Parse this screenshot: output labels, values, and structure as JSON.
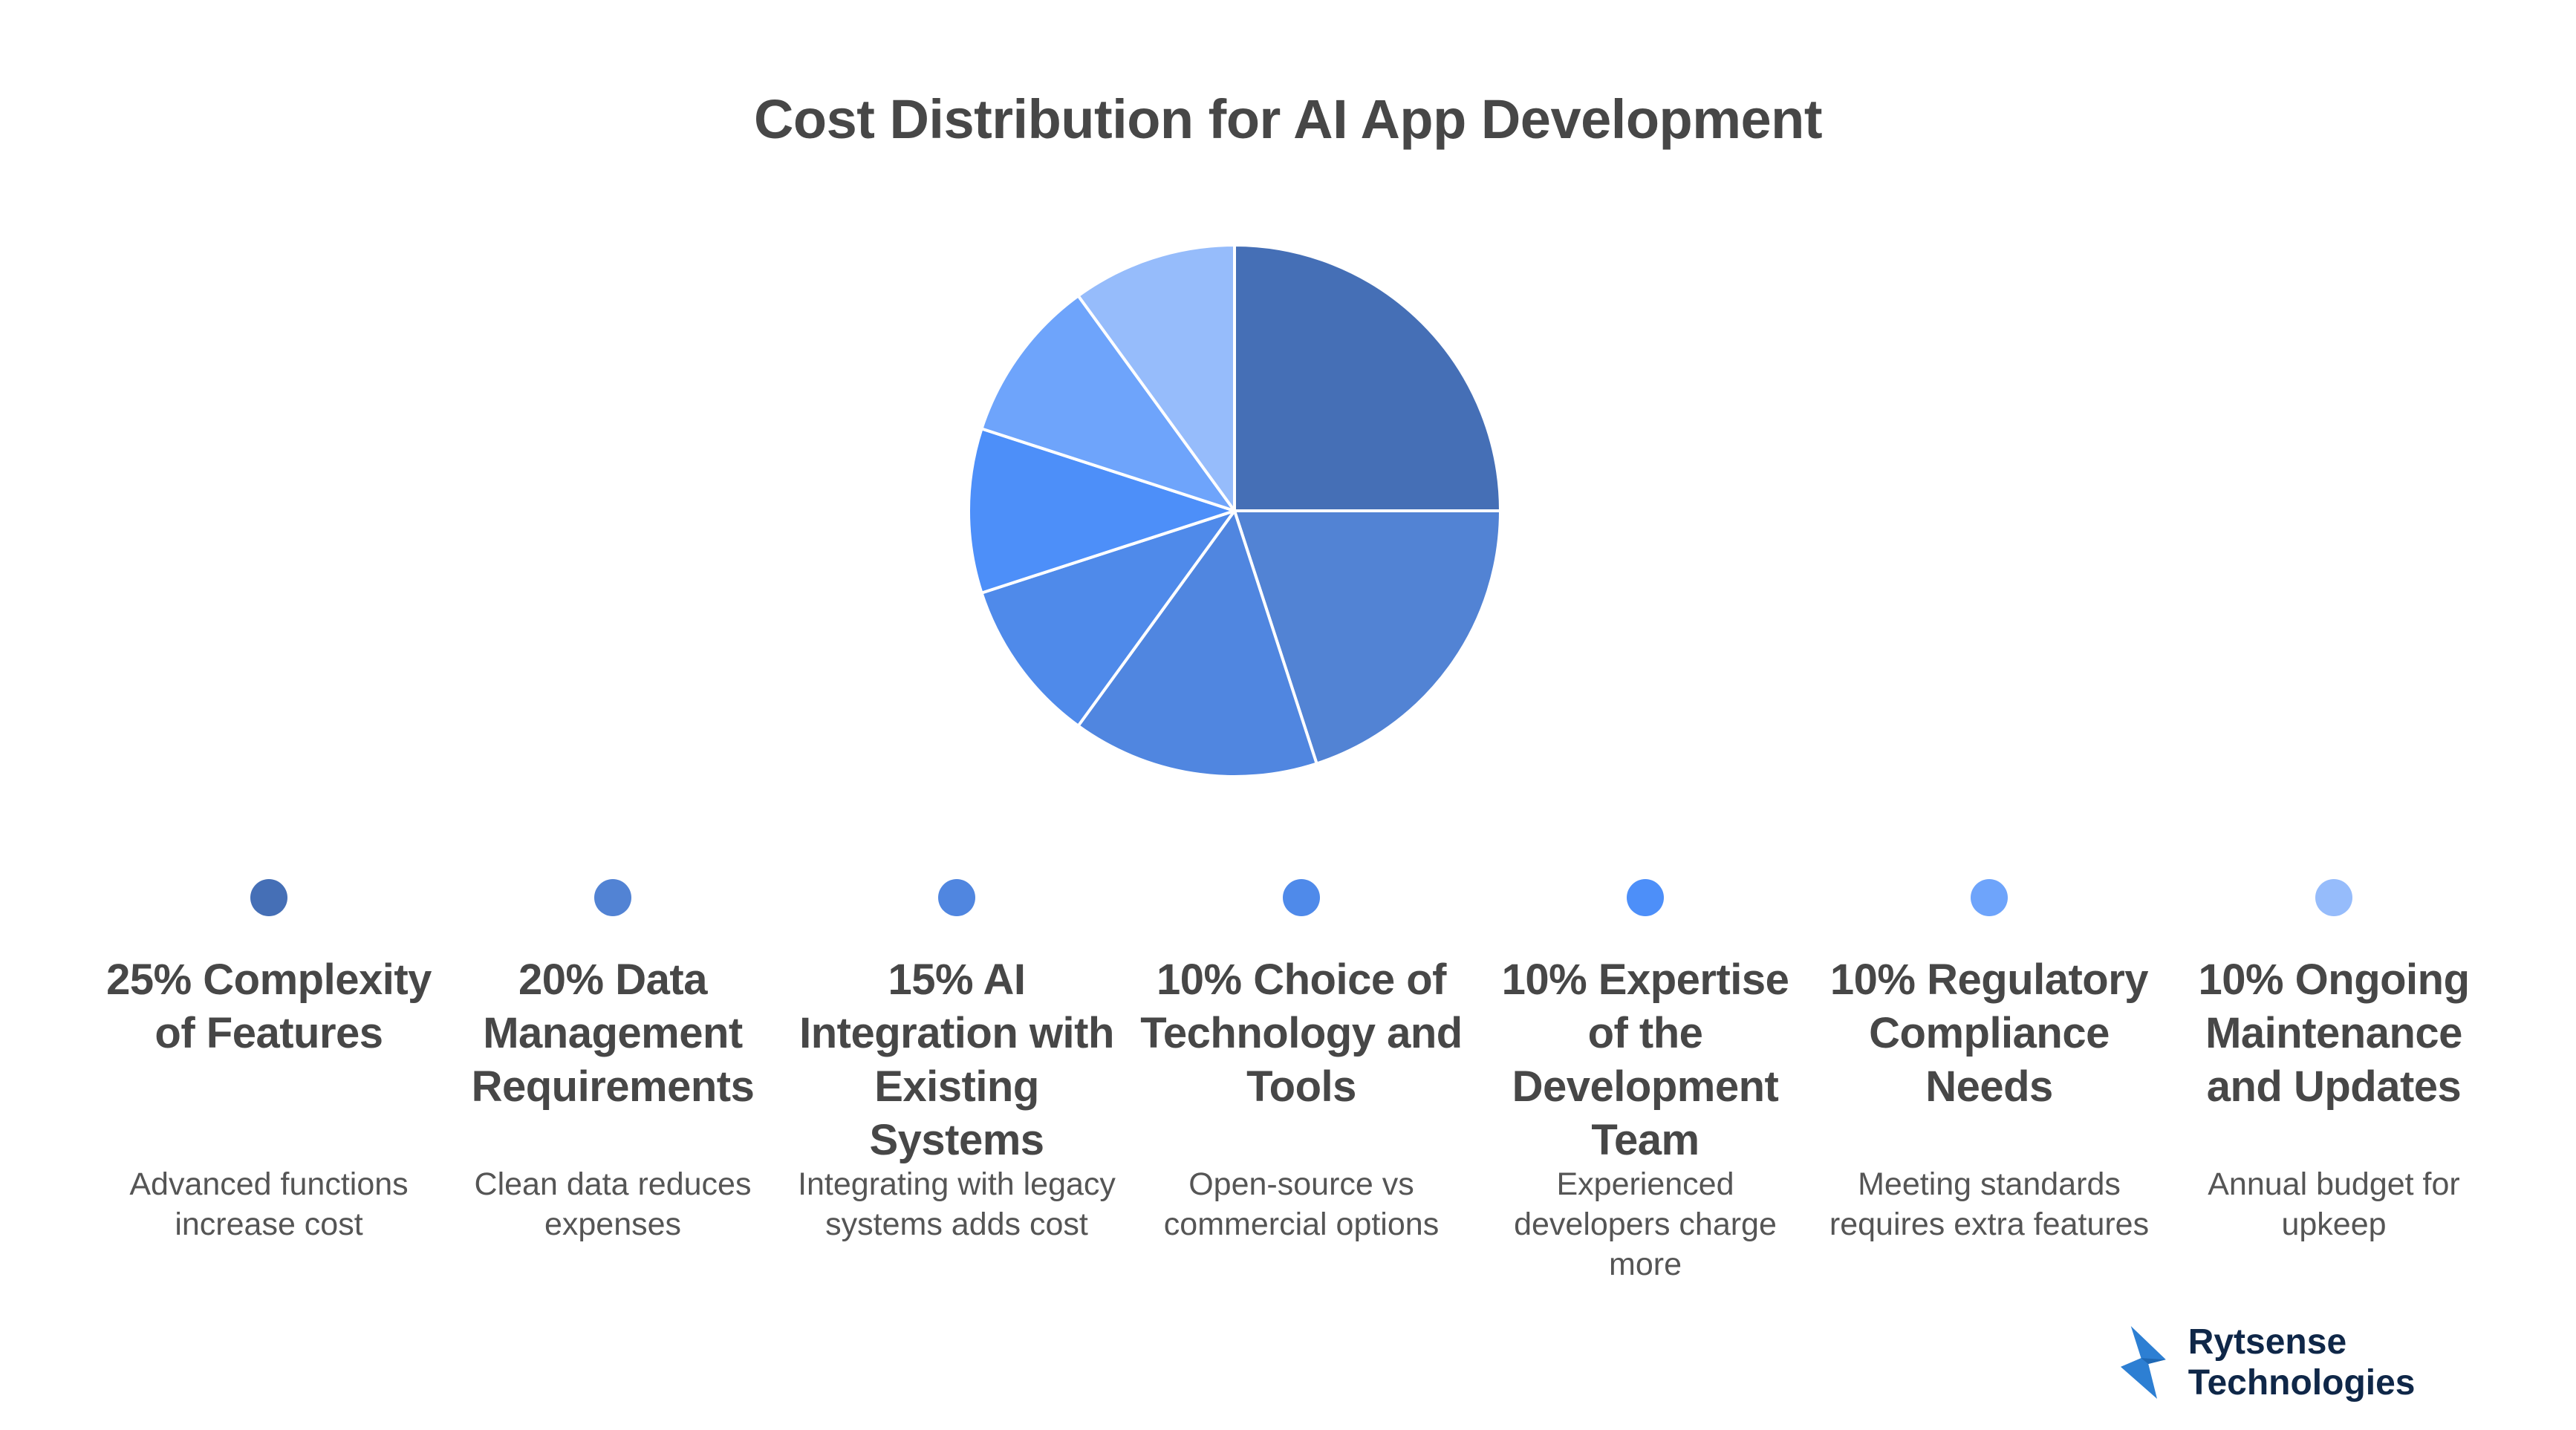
{
  "title": "Cost Distribution for AI App Development",
  "chart_data": {
    "type": "pie",
    "title": "Cost Distribution for AI App Development",
    "start_angle": "12 o'clock, clockwise",
    "categories": [
      "Complexity of Features",
      "Data Management Requirements",
      "AI Integration with Existing Systems",
      "Choice of Technology and Tools",
      "Expertise of the Development Team",
      "Regulatory Compliance Needs",
      "Ongoing Maintenance and Updates"
    ],
    "values": [
      25,
      20,
      15,
      10,
      10,
      10,
      10
    ],
    "colors": [
      "#456fb6",
      "#5283d4",
      "#5086e0",
      "#4f8aea",
      "#4d8ff9",
      "#6ea4fb",
      "#96bcfb"
    ],
    "legend_position": "bottom"
  },
  "items": [
    {
      "heading": "25% Complexity of Features",
      "desc": "Advanced functions increase cost",
      "color": "#456fb6"
    },
    {
      "heading": "20% Data Management Requirements",
      "desc": "Clean data reduces expenses",
      "color": "#5283d4"
    },
    {
      "heading": "15% AI Integration with Existing Systems",
      "desc": "Integrating with legacy systems adds cost",
      "color": "#5086e0"
    },
    {
      "heading": "10% Choice of Technology and Tools",
      "desc": "Open-source vs commercial options",
      "color": "#4f8aea"
    },
    {
      "heading": "10% Expertise of the Development Team",
      "desc": "Experienced developers charge more",
      "color": "#4d8ff9"
    },
    {
      "heading": "10% Regulatory Compliance Needs",
      "desc": "Meeting standards requires extra features",
      "color": "#6ea4fb"
    },
    {
      "heading": "10% Ongoing Maintenance and Updates",
      "desc": "Annual budget for upkeep",
      "color": "#96bcfb"
    }
  ],
  "brand": {
    "name": "Rytsense Technologies",
    "logo_icon": "lightning-bolt-icon",
    "logo_color": "#2d7fd3",
    "text_color": "#0f2748"
  }
}
